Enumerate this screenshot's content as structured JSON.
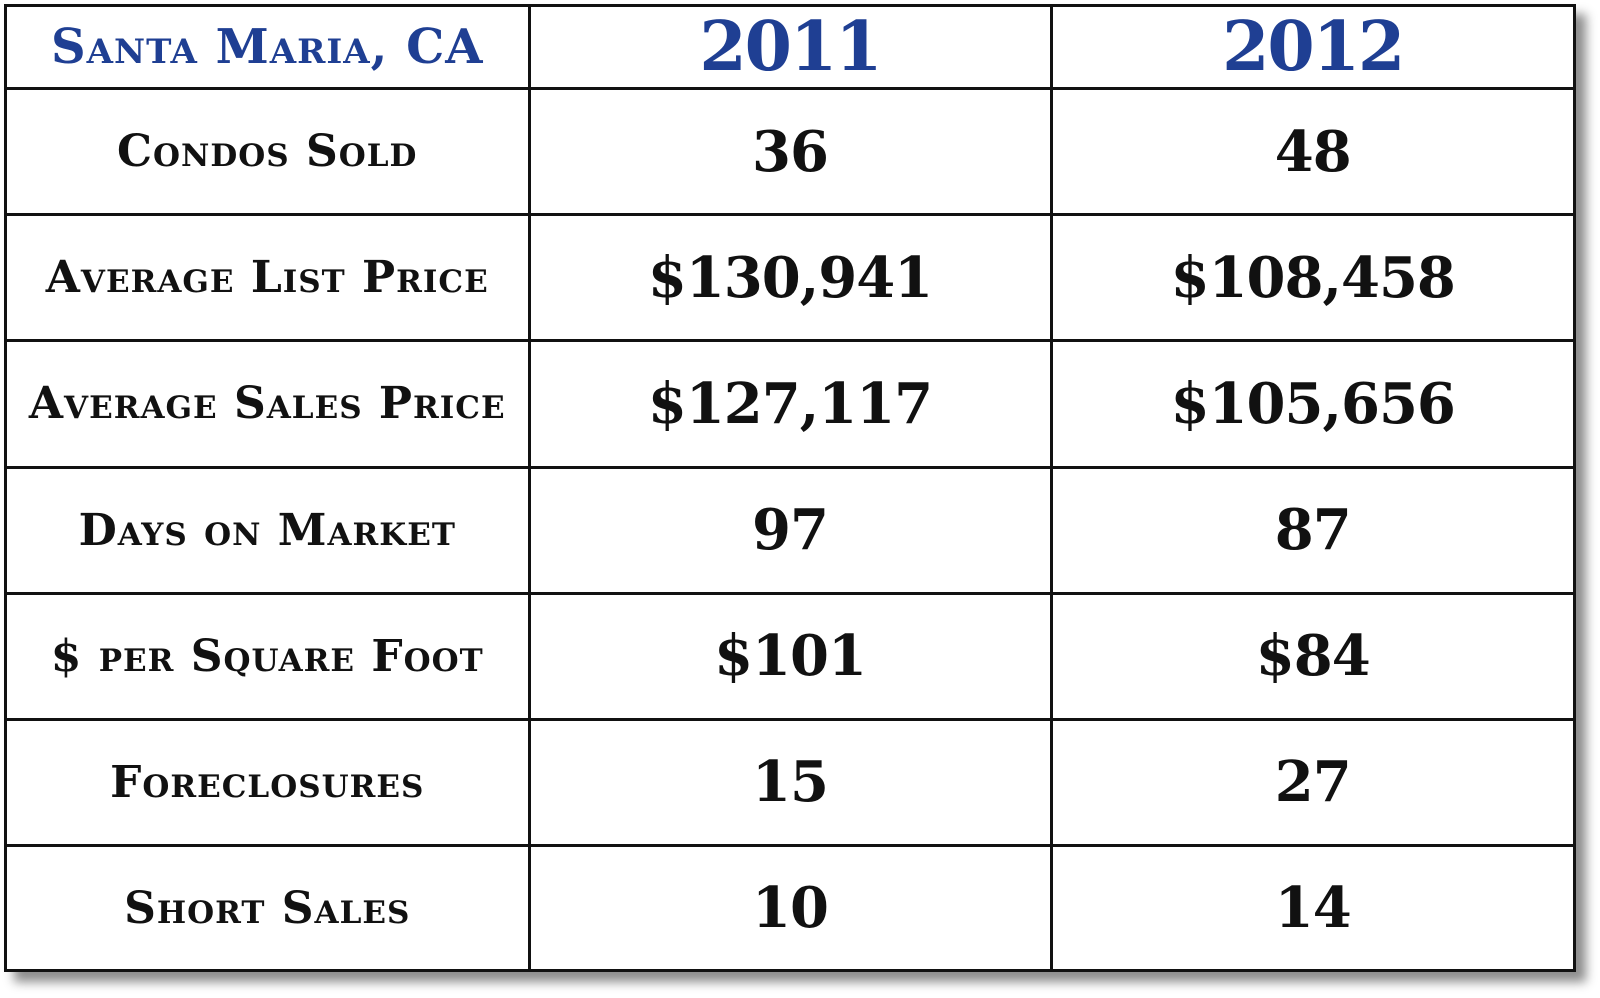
{
  "chart_data": {
    "type": "table",
    "title": "Santa Maria, CA",
    "columns": [
      "2011",
      "2012"
    ],
    "rows": [
      {
        "label": "Condos Sold",
        "values": [
          "36",
          "48"
        ]
      },
      {
        "label": "Average List Price",
        "values": [
          "$130,941",
          "$108,458"
        ]
      },
      {
        "label": "Average Sales Price",
        "values": [
          "$127,117",
          "$105,656"
        ]
      },
      {
        "label": "Days on Market",
        "values": [
          "97",
          "87"
        ]
      },
      {
        "label": "$ per Square Foot",
        "values": [
          "$101",
          "$84"
        ]
      },
      {
        "label": "Foreclosures",
        "values": [
          "15",
          "27"
        ]
      },
      {
        "label": "Short Sales",
        "values": [
          "10",
          "14"
        ]
      }
    ]
  },
  "colors": {
    "header_text": "#1f3f93",
    "body_text": "#111111",
    "grid_line": "#111111",
    "background": "#ffffff"
  }
}
